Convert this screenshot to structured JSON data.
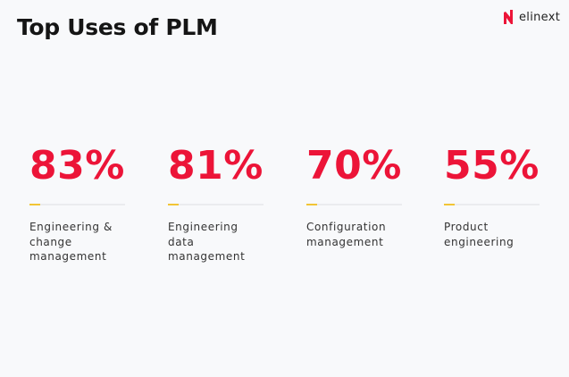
{
  "title": "Top Uses of PLM",
  "logo": {
    "text": "elinext",
    "color": "#ec1438"
  },
  "colors": {
    "value": "#ec1438",
    "accent": "#f2c535",
    "background": "#f8f9fb"
  },
  "chart_data": {
    "type": "table",
    "title": "Top Uses of PLM",
    "categories": [
      "Engineering & change management",
      "Engineering data management",
      "Configuration management",
      "Product engineering"
    ],
    "values": [
      83,
      81,
      70,
      55
    ],
    "labels": [
      "83%",
      "81%",
      "70%",
      "55%"
    ],
    "label_lines": [
      [
        "Engineering &",
        "change",
        "management"
      ],
      [
        "Engineering",
        "data",
        "management"
      ],
      [
        "Configuration",
        "management"
      ],
      [
        "Product",
        "engineering"
      ]
    ]
  }
}
